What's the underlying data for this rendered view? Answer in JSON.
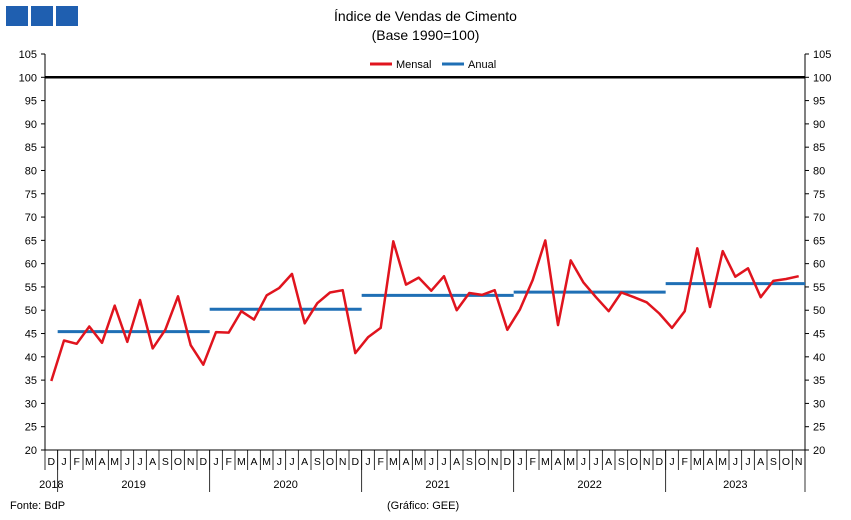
{
  "brand": {
    "colors": [
      "#1f5fb0",
      "#1f5fb0",
      "#1f5fb0"
    ]
  },
  "header": {
    "title": "Índice de Vendas de Cimento",
    "subtitle": "(Base 1990=100)"
  },
  "footer": {
    "source": "Fonte: BdP",
    "credit": "(Gráfico: GEE)"
  },
  "chart_data": {
    "type": "line",
    "title": "Índice de Vendas de Cimento",
    "subtitle": "(Base 1990=100)",
    "ylim": [
      20,
      105
    ],
    "yticks": [
      20,
      25,
      30,
      35,
      40,
      45,
      50,
      55,
      60,
      65,
      70,
      75,
      80,
      85,
      90,
      95,
      100,
      105
    ],
    "dual_y_axis": true,
    "grid": false,
    "legend": {
      "placement": "top-center",
      "entries": [
        "Mensal",
        "Anual"
      ]
    },
    "reference_line": {
      "value": 100,
      "color": "#000000"
    },
    "month_labels": [
      "D",
      "J",
      "F",
      "M",
      "A",
      "M",
      "J",
      "J",
      "A",
      "S",
      "O",
      "N",
      "D",
      "J",
      "F",
      "M",
      "A",
      "M",
      "J",
      "J",
      "A",
      "S",
      "O",
      "N",
      "D",
      "J",
      "F",
      "M",
      "A",
      "M",
      "J",
      "J",
      "A",
      "S",
      "O",
      "N",
      "D",
      "J",
      "F",
      "M",
      "A",
      "M",
      "J",
      "J",
      "A",
      "S",
      "O",
      "N",
      "D",
      "J",
      "F",
      "M",
      "A",
      "M",
      "J",
      "J",
      "A",
      "S",
      "O",
      "N"
    ],
    "year_labels": [
      {
        "label": "2018",
        "from": 0,
        "to": 0
      },
      {
        "label": "2019",
        "from": 1,
        "to": 12
      },
      {
        "label": "2020",
        "from": 13,
        "to": 24
      },
      {
        "label": "2021",
        "from": 25,
        "to": 36
      },
      {
        "label": "2022",
        "from": 37,
        "to": 48
      },
      {
        "label": "2023",
        "from": 49,
        "to": 59
      }
    ],
    "series": [
      {
        "name": "Mensal",
        "color": "#e0141e",
        "values": [
          34.8,
          43.5,
          42.8,
          46.5,
          43.0,
          51.0,
          43.2,
          52.2,
          41.8,
          45.8,
          53.0,
          42.5,
          38.3,
          45.3,
          45.2,
          49.8,
          48.0,
          53.2,
          54.8,
          57.8,
          47.2,
          51.5,
          53.8,
          54.3,
          40.8,
          44.2,
          46.2,
          64.8,
          55.5,
          57.0,
          54.2,
          57.3,
          50.0,
          53.7,
          53.3,
          54.3,
          45.8,
          50.2,
          56.5,
          65.0,
          46.8,
          60.7,
          56.0,
          52.8,
          49.8,
          53.8,
          52.8,
          51.7,
          49.3,
          46.2,
          49.8,
          63.3,
          50.7,
          62.7,
          57.2,
          59.0,
          52.8,
          56.3,
          56.7,
          57.3
        ]
      },
      {
        "name": "Anual",
        "color": "#1f6fb5",
        "segments": [
          {
            "from": 1,
            "to": 12,
            "value": 45.4
          },
          {
            "from": 13,
            "to": 24,
            "value": 50.2
          },
          {
            "from": 25,
            "to": 36,
            "value": 53.2
          },
          {
            "from": 37,
            "to": 48,
            "value": 53.9
          },
          {
            "from": 49,
            "to": 59,
            "value": 55.7
          }
        ]
      }
    ]
  }
}
